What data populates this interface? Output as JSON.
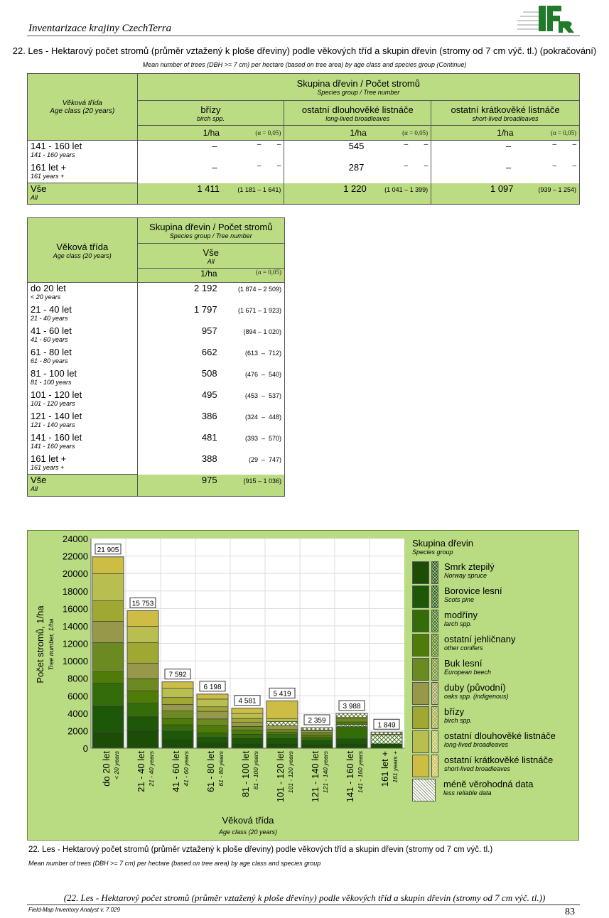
{
  "header": {
    "title": "Inventarizace krajiny CzechTerra",
    "logo_text": "IFER"
  },
  "title": "22. Les - Hektarový počet stromů (průměr vztažený k ploše dřeviny) podle věkových tříd a skupin dřevin (stromy od 7 cm výč. tl.) (pokračování)",
  "subtitle": "Mean number of trees (DBH >= 7 cm) per hectare (based on tree area) by age class and species group (Continue)",
  "table1": {
    "age_cz": "Věková třída",
    "age_en": "Age class (20 years)",
    "group_cz": "Skupina dřevin / Počet stromů",
    "group_en": "Species group / Tree number",
    "unit": "1/ha",
    "alpha": "(α = 0,05)",
    "cols": [
      {
        "cz": "břízy",
        "en": "birch spp."
      },
      {
        "cz": "ostatní dlouhověké listnáče",
        "en": "long-lived broadleaves"
      },
      {
        "cz": "ostatní krátkověké listnáče",
        "en": "short-lived broadleaves"
      }
    ],
    "rows": [
      {
        "cz": "141 - 160 let",
        "en": "141 - 160 years",
        "vals": [
          [
            "–",
            "–",
            "–"
          ],
          [
            "545",
            "–",
            "–"
          ],
          [
            "–",
            "–",
            "–"
          ]
        ]
      },
      {
        "cz": "161 let +",
        "en": "161 years +",
        "vals": [
          [
            "–",
            "–",
            "–"
          ],
          [
            "287",
            "–",
            "–"
          ],
          [
            "–",
            "–",
            "–"
          ]
        ]
      }
    ],
    "total": {
      "cz": "Vše",
      "en": "All",
      "vals": [
        [
          "1 411",
          "(1 181 – 1 641)"
        ],
        [
          "1 220",
          "(1 041 – 1 399)"
        ],
        [
          "1 097",
          "(939 – 1 254)"
        ]
      ]
    }
  },
  "table2": {
    "age_cz": "Věková třída",
    "age_en": "Age class (20 years)",
    "group_cz": "Skupina dřevin / Počet stromů",
    "group_en": "Species group / Tree number",
    "col_cz": "Vše",
    "col_en": "All",
    "unit": "1/ha",
    "alpha": "(α = 0,05)",
    "rows": [
      {
        "cz": "do 20 let",
        "en": "< 20 years",
        "v": "2 192",
        "ci": "(1 874 – 2 509)"
      },
      {
        "cz": "21 - 40 let",
        "en": "21 - 40 years",
        "v": "1 797",
        "ci": "(1 671 – 1 923)"
      },
      {
        "cz": "41 - 60 let",
        "en": "41 - 60 years",
        "v": "957",
        "ci": "(894 – 1 020)"
      },
      {
        "cz": "61 - 80 let",
        "en": "61 - 80 years",
        "v": "662",
        "ci": "(613  –  712)"
      },
      {
        "cz": "81 - 100 let",
        "en": "81 - 100 years",
        "v": "508",
        "ci": "(476  –  540)"
      },
      {
        "cz": "101 - 120 let",
        "en": "101 - 120 years",
        "v": "495",
        "ci": "(453  –  537)"
      },
      {
        "cz": "121 - 140 let",
        "en": "121 - 140 years",
        "v": "386",
        "ci": "(324  –  448)"
      },
      {
        "cz": "141 - 160 let",
        "en": "141 - 160 years",
        "v": "481",
        "ci": "(393  –  570)"
      },
      {
        "cz": "161 let +",
        "en": "161 years +",
        "v": "388",
        "ci": "(29  –  747)"
      }
    ],
    "total": {
      "cz": "Vše",
      "en": "All",
      "v": "975",
      "ci": "(915 – 1 036)"
    }
  },
  "chart_data": {
    "type": "bar",
    "stacked": true,
    "ylabel": "Počet stromů, 1/ha",
    "ylabel_en": "Tree number, 1/ha",
    "xlabel": "Věková třída",
    "xlabel_en": "Age class (20 years)",
    "ylim": [
      0,
      24000
    ],
    "yticks": [
      0,
      2000,
      4000,
      6000,
      8000,
      10000,
      12000,
      14000,
      16000,
      18000,
      20000,
      22000,
      24000
    ],
    "grid": true,
    "legend_position": "right",
    "legend_title": "Skupina dřevin",
    "legend_title_en": "Species group",
    "series": [
      {
        "key": "spruce",
        "cz": "Smrk ztepilý",
        "en": "Norway spruce",
        "color": "#1b4d06"
      },
      {
        "key": "pine",
        "cz": "Borovice lesní",
        "en": "Scots pine",
        "color": "#1d5708"
      },
      {
        "key": "larch",
        "cz": "modříny",
        "en": "larch spp.",
        "color": "#346c0a"
      },
      {
        "key": "conif",
        "cz": "ostatní jehličnany",
        "en": "other conifers",
        "color": "#4f7b08"
      },
      {
        "key": "beech",
        "cz": "Buk lesní",
        "en": "European beech",
        "color": "#6b8a22"
      },
      {
        "key": "oaks",
        "cz": "duby (původní)",
        "en": "oaks spp. (indigenous)",
        "color": "#98984a"
      },
      {
        "key": "birch",
        "cz": "břízy",
        "en": "birch spp.",
        "color": "#a0a834"
      },
      {
        "key": "long",
        "cz": "ostatní dlouhověké listnáče",
        "en": "long-lived broadleaves",
        "color": "#b8bf50"
      },
      {
        "key": "short",
        "cz": "ostatní krátkověké listnáče",
        "en": "short-lived broadleaves",
        "color": "#cdbd45"
      },
      {
        "key": "unrel",
        "cz": "méně věrohodná data",
        "en": "less reliable data",
        "color": "#c8dca0"
      }
    ],
    "categories": [
      {
        "cz": "do 20 let",
        "en": "< 20 years",
        "total": 21905,
        "label": "21 905",
        "segments": [
          [
            "spruce",
            1720
          ],
          [
            "pine",
            3060
          ],
          [
            "larch",
            2640
          ],
          [
            "conif",
            1310
          ],
          [
            "beech",
            3350
          ],
          [
            "oaks",
            2440
          ],
          [
            "birch",
            2350
          ],
          [
            "long",
            3110
          ],
          [
            "short",
            1925
          ]
        ]
      },
      {
        "cz": "21 - 40 let",
        "en": "21 - 40 years",
        "total": 15753,
        "label": "15 753",
        "segments": [
          [
            "spruce",
            1960
          ],
          [
            "pine",
            1630
          ],
          [
            "larch",
            1560
          ],
          [
            "conif",
            1430
          ],
          [
            "beech",
            1390
          ],
          [
            "oaks",
            1770
          ],
          [
            "birch",
            2340
          ],
          [
            "long",
            1870
          ],
          [
            "short",
            1803
          ]
        ]
      },
      {
        "cz": "41 - 60 let",
        "en": "41 - 60 years",
        "total": 7592,
        "label": "7 592",
        "segments": [
          [
            "spruce",
            960
          ],
          [
            "pine",
            950
          ],
          [
            "larch",
            770
          ],
          [
            "conif",
            720
          ],
          [
            "beech",
            860
          ],
          [
            "oaks",
            760
          ],
          [
            "birch",
            790
          ],
          [
            "long",
            1080
          ],
          [
            "short",
            702
          ]
        ]
      },
      {
        "cz": "61 - 80 let",
        "en": "61 - 80 years",
        "total": 6198,
        "label": "6 198",
        "segments": [
          [
            "spruce",
            600
          ],
          [
            "pine",
            640
          ],
          [
            "larch",
            510
          ],
          [
            "conif",
            830
          ],
          [
            "beech",
            770
          ],
          [
            "oaks",
            880
          ],
          [
            "birch",
            510
          ],
          [
            "long",
            880
          ],
          [
            "short",
            578
          ]
        ]
      },
      {
        "cz": "81 - 100 let",
        "en": "81 - 100 years",
        "total": 4581,
        "label": "4 581",
        "segments": [
          [
            "spruce",
            470
          ],
          [
            "pine",
            650
          ],
          [
            "larch",
            480
          ],
          [
            "conif",
            450
          ],
          [
            "beech",
            450
          ],
          [
            "oaks",
            460
          ],
          [
            "birch",
            450
          ],
          [
            "long",
            560
          ],
          [
            "short",
            611
          ]
        ]
      },
      {
        "cz": "101 - 120 let",
        "en": "101 - 120 years",
        "total": 5419,
        "label": "5 419",
        "segments": [
          [
            "spruce",
            450
          ],
          [
            "pine",
            670
          ],
          [
            "larch",
            450
          ],
          [
            "conif",
            260
          ],
          [
            "beech",
            300
          ],
          [
            "oaks",
            470
          ],
          [
            "unrel",
            450
          ],
          [
            "long",
            350
          ],
          [
            "short",
            2019
          ]
        ]
      },
      {
        "cz": "121 - 140 let",
        "en": "121 - 140 years",
        "total": 2359,
        "label": "2 359",
        "segments": [
          [
            "spruce",
            380
          ],
          [
            "pine",
            510
          ],
          [
            "larch",
            300
          ],
          [
            "conif",
            300
          ],
          [
            "beech",
            300
          ],
          [
            "oaks",
            200
          ],
          [
            "long",
            80
          ],
          [
            "unrel",
            289
          ]
        ]
      },
      {
        "cz": "141 - 160 let",
        "en": "141 - 160 years",
        "total": 3988,
        "label": "3 988",
        "segments": [
          [
            "spruce",
            480
          ],
          [
            "pine",
            590
          ],
          [
            "larch",
            1400
          ],
          [
            "unrel",
            230
          ],
          [
            "conif",
            300
          ],
          [
            "beech",
            400
          ],
          [
            "long",
            150
          ],
          [
            "unrel",
            438
          ]
        ]
      },
      {
        "cz": "161 let +",
        "en": "161 years +",
        "total": 1849,
        "label": "1 849",
        "segments": [
          [
            "spruce",
            500
          ],
          [
            "unrel",
            1000
          ],
          [
            "long",
            100
          ],
          [
            "unrel",
            249
          ]
        ]
      }
    ]
  },
  "caption": {
    "cz": "22. Les - Hektarový počet stromů (průměr vztažený k ploše dřeviny) podle věkových tříd a skupin dřevin (stromy od 7 cm výč. tl.)",
    "en": "Mean number of trees (DBH >= 7 cm) per hectare (based on tree area) by age class and species group"
  },
  "footer": {
    "title": "(22. Les - Hektarový počet stromů (průměr vztažený k ploše dřeviny) podle věkových tříd a skupin dřevin (stromy od 7 cm výč. tl.))",
    "software": "Field-Map Inventory Analyst v. 7.029",
    "page": "83"
  }
}
